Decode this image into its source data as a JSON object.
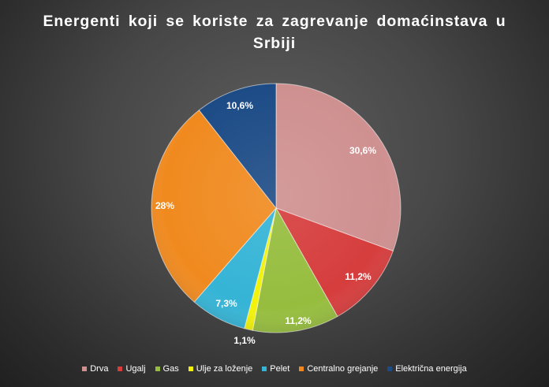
{
  "chart_data": {
    "type": "pie",
    "title": "Energenti koji se koriste za zagrevanje domaćinstava u Srbiji",
    "title_lines": [
      "Energenti koji se koriste za zagrevanje domaćinstava u",
      "Srbiji"
    ],
    "categories": [
      "Drva",
      "Ugalj",
      "Gas",
      "Ulje za loženje",
      "Pelet",
      "Centralno grejanje",
      "Električna energija"
    ],
    "values": [
      30.6,
      11.2,
      11.2,
      1.1,
      7.3,
      28,
      10.6
    ],
    "labels": [
      "30,6%",
      "11,2%",
      "11,2%",
      "1,1%",
      "7,3%",
      "28%",
      "10,6%"
    ],
    "colors": [
      "#cf9090",
      "#d63d3d",
      "#96bd3e",
      "#f2f20a",
      "#35b4d6",
      "#f08a1f",
      "#1c4b86"
    ],
    "start_angle_deg": 0,
    "direction": "clockwise",
    "legend_position": "bottom"
  }
}
